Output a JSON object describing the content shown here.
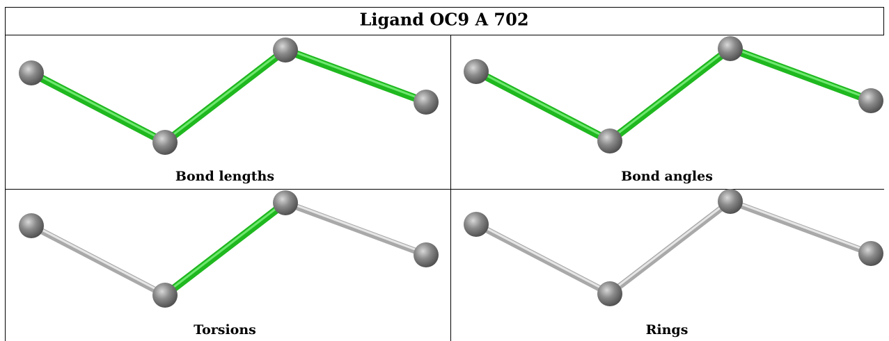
{
  "header": {
    "title": "Ligand OC9 A 702"
  },
  "panels": [
    {
      "label": "Bond lengths"
    },
    {
      "label": "Bond angles"
    },
    {
      "label": "Torsions"
    },
    {
      "label": "Rings"
    }
  ]
}
